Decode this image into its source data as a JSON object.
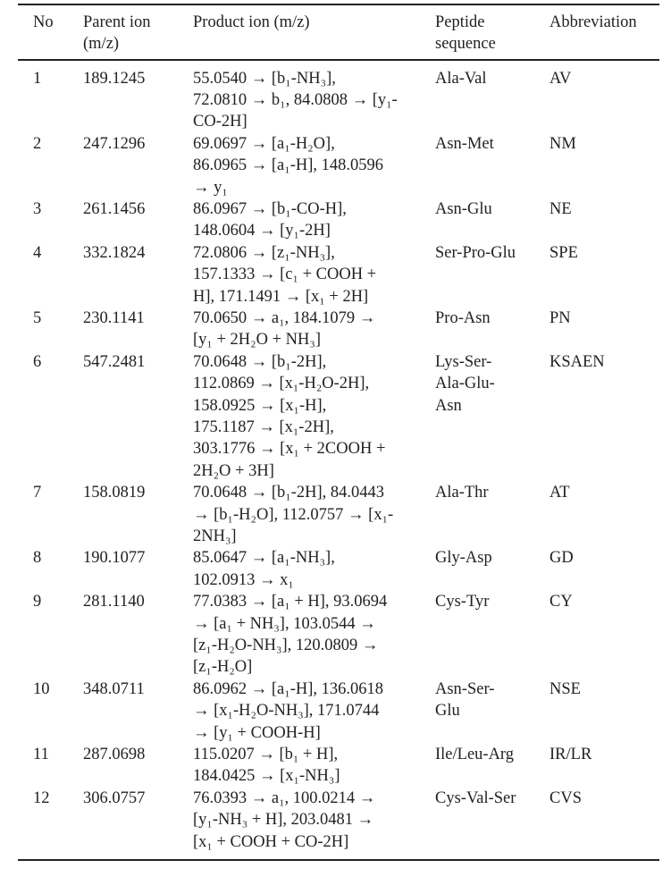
{
  "table": {
    "headers": [
      [
        "No"
      ],
      [
        "Parent ion",
        "(m/z)"
      ],
      [
        "Product ion (m/z)"
      ],
      [
        "Peptide",
        "sequence"
      ],
      [
        "Abbreviation"
      ]
    ],
    "rows": [
      {
        "no": "1",
        "parent": "189.1245",
        "product": [
          "55.0540 → [b₁-NH₃],",
          "72.0810 → b₁, 84.0808 → [y₁-",
          "CO-2H]"
        ],
        "peptide": [
          "Ala-Val"
        ],
        "abbr": "AV"
      },
      {
        "no": "2",
        "parent": "247.1296",
        "product": [
          "69.0697 → [a₁-H₂O],",
          "86.0965 → [a₁-H], 148.0596",
          "→ y₁"
        ],
        "peptide": [
          "Asn-Met"
        ],
        "abbr": "NM"
      },
      {
        "no": "3",
        "parent": "261.1456",
        "product": [
          "86.0967 → [b₁-CO-H],",
          "148.0604 → [y₁-2H]"
        ],
        "peptide": [
          "Asn-Glu"
        ],
        "abbr": "NE"
      },
      {
        "no": "4",
        "parent": "332.1824",
        "product": [
          "72.0806 → [z₁-NH₃],",
          "157.1333 → [c₁ + COOH +",
          "H], 171.1491 → [x₁ + 2H]"
        ],
        "peptide": [
          "Ser-Pro-Glu"
        ],
        "abbr": "SPE"
      },
      {
        "no": "5",
        "parent": "230.1141",
        "product": [
          "70.0650 → a₁, 184.1079 →",
          "[y₁ + 2H₂O + NH₃]"
        ],
        "peptide": [
          "Pro-Asn"
        ],
        "abbr": "PN"
      },
      {
        "no": "6",
        "parent": "547.2481",
        "product": [
          "70.0648 → [b₁-2H],",
          "112.0869 → [x₁-H₂O-2H],",
          "158.0925 → [x₁-H],",
          "175.1187 → [x₁-2H],",
          "303.1776 → [x₁ + 2COOH +",
          "2H₂O + 3H]"
        ],
        "peptide": [
          "Lys-Ser-",
          "Ala-Glu-",
          "Asn"
        ],
        "abbr": "KSAEN"
      },
      {
        "no": "7",
        "parent": "158.0819",
        "product": [
          "70.0648 → [b₁-2H], 84.0443",
          "→ [b₁-H₂O], 112.0757 → [x₁-",
          "2NH₃]"
        ],
        "peptide": [
          "Ala-Thr"
        ],
        "abbr": "AT"
      },
      {
        "no": "8",
        "parent": "190.1077",
        "product": [
          "85.0647 → [a₁-NH₃],",
          "102.0913 → x₁"
        ],
        "peptide": [
          "Gly-Asp"
        ],
        "abbr": "GD"
      },
      {
        "no": "9",
        "parent": "281.1140",
        "product": [
          "77.0383 → [a₁ + H], 93.0694",
          "→ [a₁ + NH₃], 103.0544 →",
          "[z₁-H₂O-NH₃], 120.0809 →",
          "[z₁-H₂O]"
        ],
        "peptide": [
          "Cys-Tyr"
        ],
        "abbr": "CY"
      },
      {
        "no": "10",
        "parent": "348.0711",
        "product": [
          "86.0962 → [a₁-H], 136.0618",
          "→ [x₁-H₂O-NH₃], 171.0744",
          "→ [y₁ + COOH-H]"
        ],
        "peptide": [
          "Asn-Ser-",
          "Glu"
        ],
        "abbr": "NSE"
      },
      {
        "no": "11",
        "parent": "287.0698",
        "product": [
          "115.0207 → [b₁ + H],",
          "184.0425 → [x₁-NH₃]"
        ],
        "peptide": [
          "Ile/Leu-Arg"
        ],
        "abbr": "IR/LR"
      },
      {
        "no": "12",
        "parent": "306.0757",
        "product": [
          "76.0393 → a₁, 100.0214 →",
          "[y₁-NH₃ + H], 203.0481 →",
          "[x₁ + COOH + CO-2H]"
        ],
        "peptide": [
          "Cys-Val-Ser"
        ],
        "abbr": "CVS"
      }
    ]
  }
}
